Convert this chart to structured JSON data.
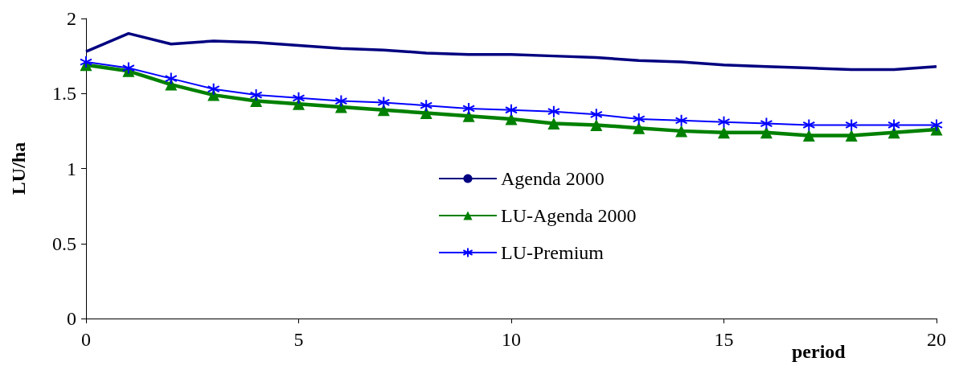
{
  "chart_data": {
    "type": "line",
    "xlabel": "period",
    "ylabel": "LU/ha",
    "x": [
      0,
      1,
      2,
      3,
      4,
      5,
      6,
      7,
      8,
      9,
      10,
      11,
      12,
      13,
      14,
      15,
      16,
      17,
      18,
      19,
      20
    ],
    "xlim": [
      0,
      20
    ],
    "xticks": [
      0,
      5,
      10,
      15,
      20
    ],
    "ylim": [
      0,
      2
    ],
    "yticks": [
      0,
      0.5,
      1,
      1.5,
      2
    ],
    "grid": false,
    "legend": "center",
    "series": [
      {
        "name": "Agenda 2000",
        "color": "#000080",
        "marker": "none",
        "values": [
          1.78,
          1.9,
          1.83,
          1.85,
          1.84,
          1.82,
          1.8,
          1.79,
          1.77,
          1.76,
          1.76,
          1.75,
          1.74,
          1.72,
          1.71,
          1.69,
          1.68,
          1.67,
          1.66,
          1.66,
          1.68
        ]
      },
      {
        "name": "LU-Agenda 2000",
        "color": "#008000",
        "marker": "triangle",
        "values": [
          1.69,
          1.65,
          1.56,
          1.49,
          1.45,
          1.43,
          1.41,
          1.39,
          1.37,
          1.35,
          1.33,
          1.3,
          1.29,
          1.27,
          1.25,
          1.24,
          1.24,
          1.22,
          1.22,
          1.24,
          1.26
        ]
      },
      {
        "name": "LU-Premium",
        "color": "#0000ff",
        "marker": "cross",
        "values": [
          1.71,
          1.67,
          1.6,
          1.53,
          1.49,
          1.47,
          1.45,
          1.44,
          1.42,
          1.4,
          1.39,
          1.38,
          1.36,
          1.33,
          1.32,
          1.31,
          1.3,
          1.29,
          1.29,
          1.29,
          1.29
        ]
      }
    ]
  }
}
